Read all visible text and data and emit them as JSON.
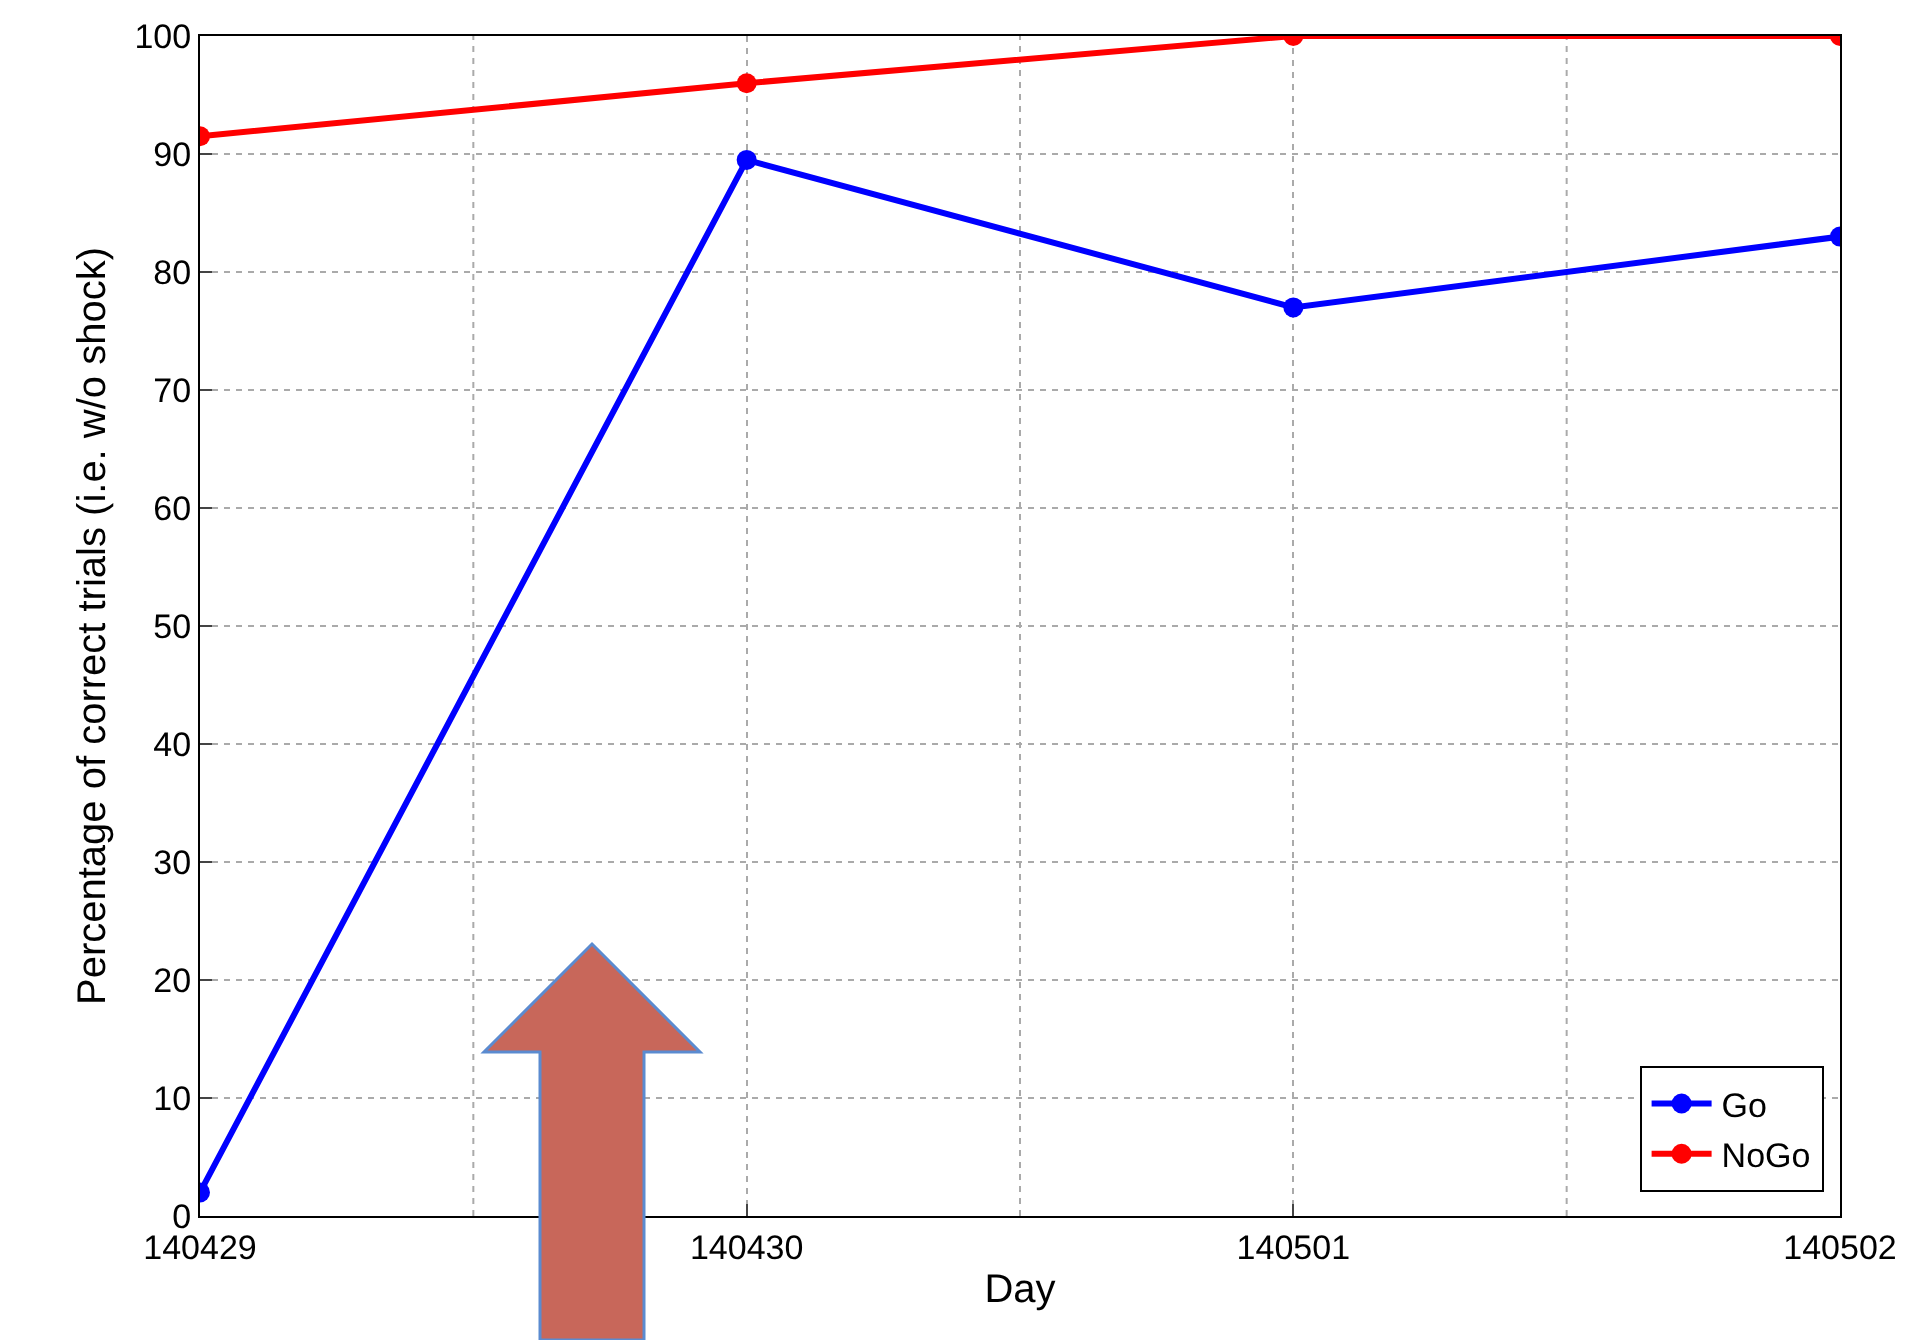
{
  "chart_data": {
    "type": "line",
    "xlabel": "Day",
    "ylabel": "Percentage of correct trials (i.e. w/o shock)",
    "categories": [
      "140429",
      "140430",
      "140501",
      "140502"
    ],
    "series": [
      {
        "name": "Go",
        "color": "#0000ff",
        "values": [
          2,
          89.5,
          77,
          83
        ]
      },
      {
        "name": "NoGo",
        "color": "#ff0000",
        "values": [
          91.5,
          96,
          100,
          100
        ]
      }
    ],
    "ylim": [
      0,
      100
    ],
    "yticks": [
      0,
      10,
      20,
      30,
      40,
      50,
      60,
      70,
      80,
      90,
      100
    ],
    "grid": true,
    "legend": "bottom right",
    "marker": "circle",
    "line_style": "solid"
  }
}
